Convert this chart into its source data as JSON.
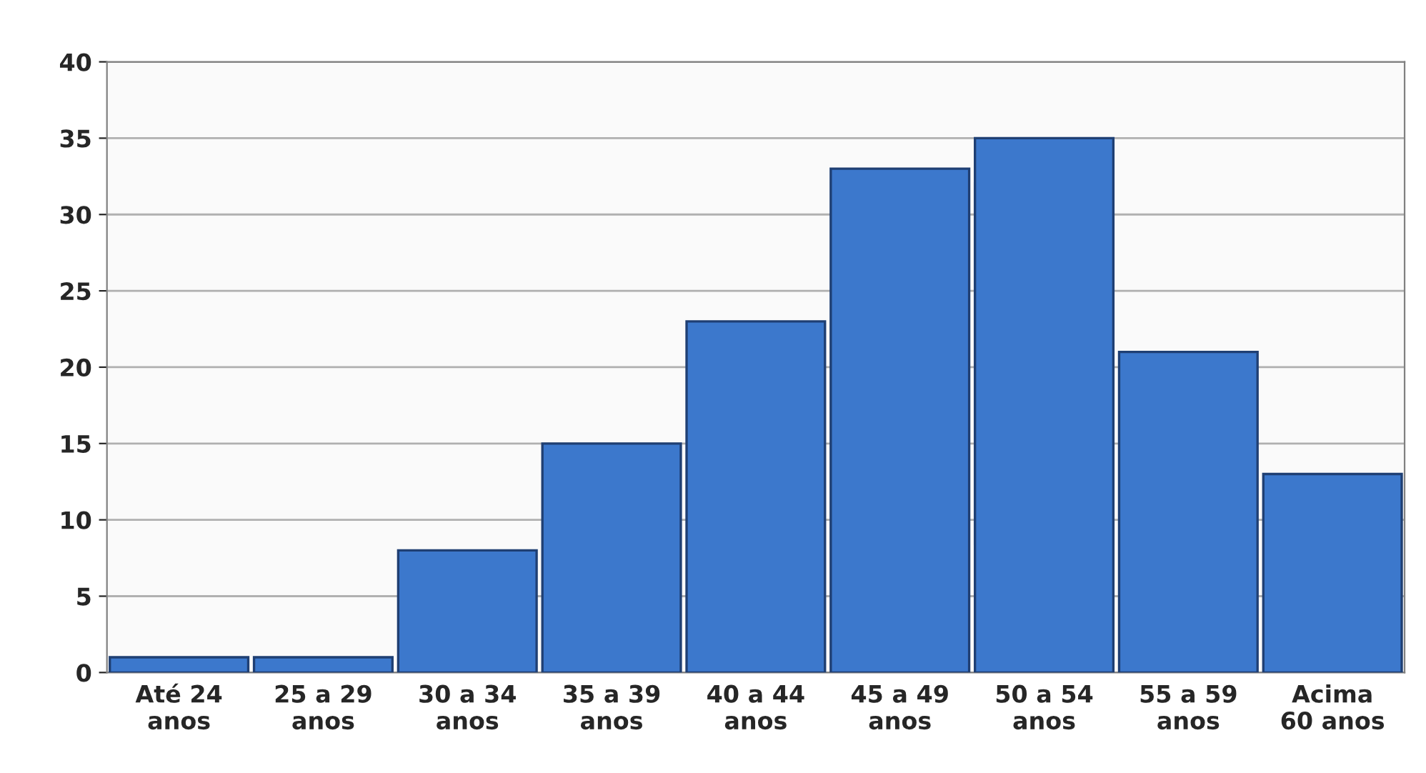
{
  "chart_data": {
    "type": "bar",
    "categories": [
      "Até 24\nanos",
      "25 a 29\nanos",
      "30 a 34\nanos",
      "35 a 39\nanos",
      "40 a 44\nanos",
      "45 a 49\nanos",
      "50 a 54\nanos",
      "55 a 59\nanos",
      "Acima\n60 anos"
    ],
    "values": [
      1,
      1,
      8,
      15,
      23,
      33,
      35,
      21,
      13
    ],
    "color": "#3c78cc",
    "ylim": [
      0,
      40
    ],
    "yticks": [
      0,
      5,
      10,
      15,
      20,
      25,
      30,
      35,
      40
    ],
    "grid": "y"
  }
}
